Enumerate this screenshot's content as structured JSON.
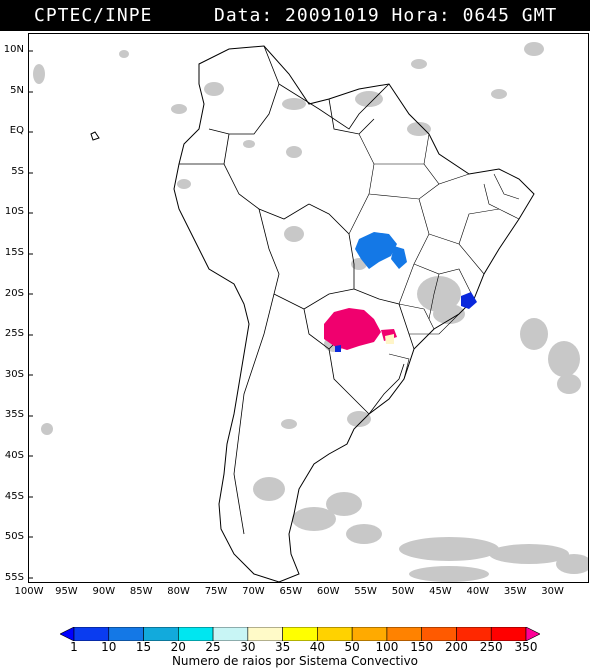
{
  "header": {
    "org": "CPTEC/INPE",
    "meta_text": "Data: 20091019 Hora: 0645 GMT"
  },
  "map": {
    "lat_labels": [
      "10N",
      "5N",
      "EQ",
      "5S",
      "10S",
      "15S",
      "20S",
      "25S",
      "30S",
      "35S",
      "40S",
      "45S",
      "50S",
      "55S"
    ],
    "lon_labels": [
      "100W",
      "95W",
      "90W",
      "85W",
      "80W",
      "75W",
      "70W",
      "65W",
      "60W",
      "55W",
      "50W",
      "45W",
      "40W",
      "35W",
      "30W"
    ],
    "colors": {
      "cloud_gray": "#c8c8c8",
      "storm_blue": "#1478e6",
      "storm_dark_blue": "#0a28dc",
      "storm_magenta": "#f0006e",
      "storm_cream": "#fff5c8"
    }
  },
  "legend": {
    "tick_labels": [
      "1",
      "10",
      "15",
      "20",
      "25",
      "30",
      "35",
      "40",
      "50",
      "100",
      "150",
      "200",
      "250",
      "350"
    ],
    "colors": [
      "#0000ff",
      "#0a3cf0",
      "#1478e6",
      "#12aadc",
      "#00e6f0",
      "#c8f5f5",
      "#fffac8",
      "#ffff00",
      "#ffd200",
      "#ffaa00",
      "#ff8200",
      "#ff5a00",
      "#ff2800",
      "#ff0000",
      "#ff0096"
    ],
    "caption": "Numero de raios por Sistema Convectivo"
  }
}
